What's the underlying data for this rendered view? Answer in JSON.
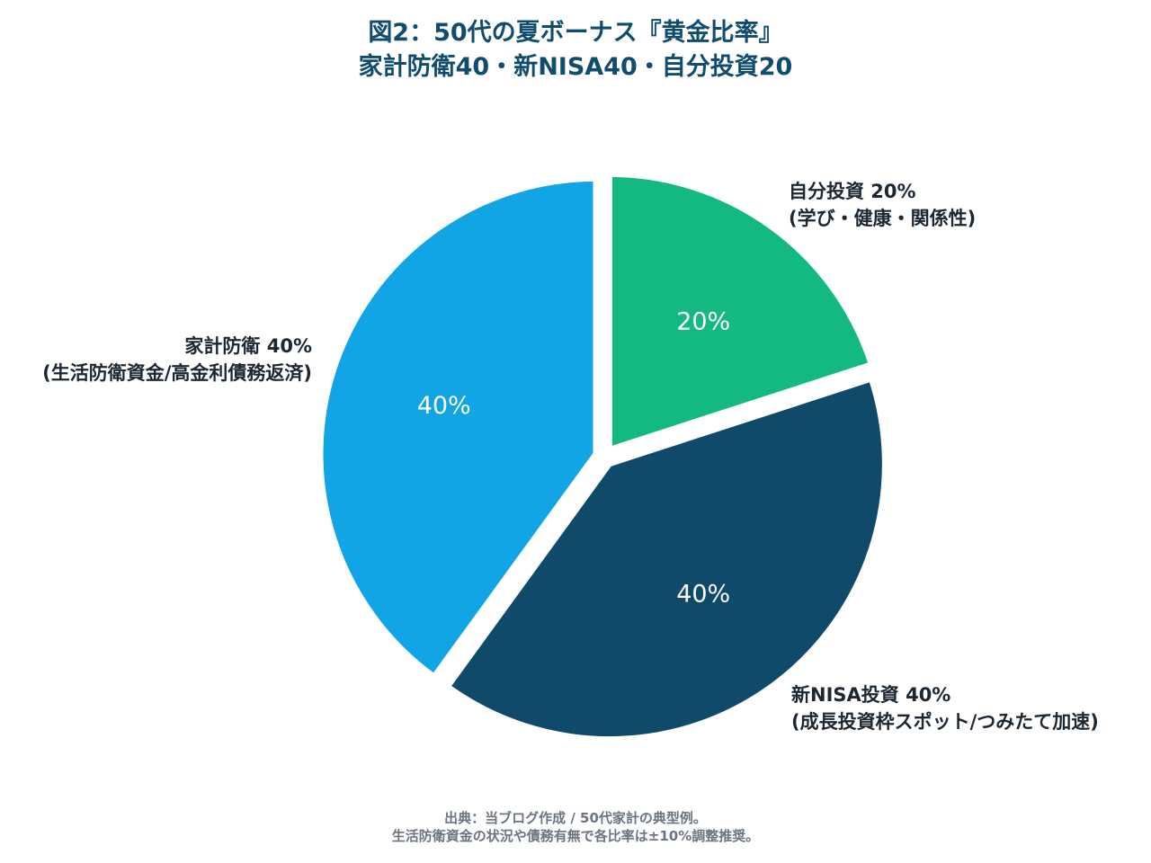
{
  "title": {
    "line1": "図2：50代の夏ボーナス『黄金比率』",
    "line2": "家計防衛40・新NISA40・自分投資20"
  },
  "chart_data": {
    "type": "pie",
    "title": "図2：50代の夏ボーナス『黄金比率』 家計防衛40・新NISA40・自分投資20",
    "slices": [
      {
        "name": "自分投資",
        "value": 20,
        "inner_label": "20%",
        "label_line1": "自分投資 20%",
        "label_line2": "(学び・健康・関係性)",
        "color": "#13b981"
      },
      {
        "name": "新NISA投資",
        "value": 40,
        "inner_label": "40%",
        "label_line1": "新NISA投資 40%",
        "label_line2": "(成長投資枠スポット/つみたて加速)",
        "color": "#0f4a6b"
      },
      {
        "name": "家計防衛",
        "value": 40,
        "inner_label": "40%",
        "label_line1": "家計防衛 40%",
        "label_line2": "(生活防衛資金/高金利債務返済)",
        "color": "#11a5e6"
      }
    ],
    "start_angle_deg": 0,
    "direction": "clockwise",
    "exploded": true
  },
  "footer": {
    "line1": "出典：当ブログ作成 / 50代家計の典型例。",
    "line2": "生活防衛資金の状況や債務有無で各比率は±10%調整推奨。"
  },
  "colors": {
    "title": "#0f4c6e",
    "outer_label": "#1b2733",
    "inner_label": "#ffffff",
    "footer": "#6b7480"
  }
}
